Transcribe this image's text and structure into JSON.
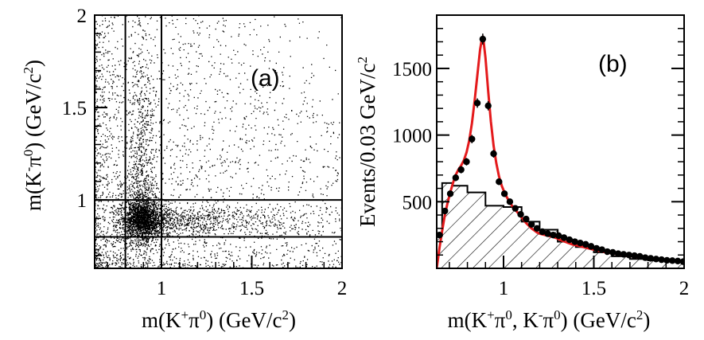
{
  "chart_data": [
    {
      "type": "scatter",
      "panel_label": "(a)",
      "xlabel": {
        "pre": "m(K",
        "sup1": "+",
        "mid": "π",
        "sup2": "0",
        "post": ") (GeV/c",
        "sup3": "2",
        "end": ")"
      },
      "ylabel": {
        "pre": "m(K",
        "sup1": "-",
        "mid": "π",
        "sup2": "0",
        "post": ") (GeV/c",
        "sup3": "2",
        "end": ")"
      },
      "xlim": [
        0.63,
        2.0
      ],
      "ylim": [
        0.63,
        2.0
      ],
      "xticks": [
        {
          "v": 1,
          "label": "1"
        },
        {
          "v": 1.5,
          "label": "1.5"
        },
        {
          "v": 2,
          "label": "2"
        }
      ],
      "yticks": [
        {
          "v": 1,
          "label": "1"
        },
        {
          "v": 1.5,
          "label": "1.5"
        },
        {
          "v": 2,
          "label": "2"
        }
      ],
      "cut_lines_x": [
        0.8,
        1.0
      ],
      "cut_lines_y": [
        0.8,
        1.0
      ],
      "grid": false,
      "point_density_clusters": [
        {
          "x": 0.89,
          "y": 0.89,
          "sx": 0.06,
          "sy": 0.06,
          "weight": 0.3
        },
        {
          "x": 0.89,
          "y": 1.05,
          "sx": 0.04,
          "sy": 0.45,
          "weight": 0.12
        },
        {
          "x": 1.1,
          "y": 0.89,
          "sx": 0.45,
          "sy": 0.04,
          "weight": 0.14
        },
        {
          "x": 1.3,
          "y": 1.3,
          "sx": 0.5,
          "sy": 0.5,
          "weight": 0.44
        }
      ]
    },
    {
      "type": "histogram",
      "panel_label": "(b)",
      "xlabel": {
        "pre": "m(K",
        "sup1": "+",
        "mid": "π",
        "sup2": "0",
        "mid2": ", K",
        "sup3": "-",
        "mid3": "π",
        "sup4": "0",
        "post": ") (GeV/c",
        "sup5": "2",
        "end": ")"
      },
      "ylabel": {
        "pre": "Events/0.03 GeV/c",
        "sup": "2"
      },
      "xlim": [
        0.63,
        2.0
      ],
      "ylim": [
        0,
        1900
      ],
      "xticks": [
        {
          "v": 1,
          "label": "1"
        },
        {
          "v": 1.5,
          "label": "1.5"
        },
        {
          "v": 2,
          "label": "2"
        }
      ],
      "yticks": [
        {
          "v": 500,
          "label": "500"
        },
        {
          "v": 1000,
          "label": "1000"
        },
        {
          "v": 1500,
          "label": "1500"
        }
      ],
      "data_points": {
        "x": [
          0.645,
          0.675,
          0.705,
          0.735,
          0.765,
          0.795,
          0.825,
          0.855,
          0.885,
          0.915,
          0.945,
          0.975,
          1.005,
          1.035,
          1.065,
          1.095,
          1.125,
          1.155,
          1.185,
          1.215,
          1.245,
          1.275,
          1.305,
          1.335,
          1.365,
          1.395,
          1.425,
          1.455,
          1.485,
          1.515,
          1.545,
          1.575,
          1.605,
          1.635,
          1.665,
          1.695,
          1.725,
          1.755,
          1.785,
          1.815,
          1.845,
          1.875,
          1.905,
          1.935,
          1.965,
          1.995
        ],
        "y": [
          250,
          430,
          560,
          680,
          740,
          800,
          970,
          1240,
          1720,
          1220,
          860,
          650,
          560,
          500,
          450,
          405,
          370,
          330,
          300,
          275,
          260,
          250,
          245,
          230,
          215,
          200,
          190,
          180,
          165,
          150,
          140,
          125,
          120,
          110,
          105,
          100,
          95,
          90,
          80,
          75,
          70,
          65,
          60,
          58,
          55,
          50
        ]
      },
      "fit_curve": {
        "color": "#e41a1c",
        "x": [
          0.63,
          0.645,
          0.66,
          0.675,
          0.69,
          0.705,
          0.72,
          0.735,
          0.75,
          0.765,
          0.78,
          0.795,
          0.81,
          0.825,
          0.84,
          0.855,
          0.87,
          0.88,
          0.885,
          0.89,
          0.9,
          0.915,
          0.93,
          0.945,
          0.96,
          0.975,
          0.99,
          1.005,
          1.02,
          1.035,
          1.05,
          1.065,
          1.08,
          1.095,
          1.11,
          1.125,
          1.14,
          1.155,
          1.17,
          1.185,
          1.2,
          1.215,
          1.23,
          1.245,
          1.26,
          1.275,
          1.29,
          1.305,
          1.32,
          1.35,
          1.38,
          1.41,
          1.44,
          1.47,
          1.5,
          1.53,
          1.56,
          1.59,
          1.62,
          1.65,
          1.68,
          1.71,
          1.74,
          1.77,
          1.8,
          1.83,
          1.86,
          1.89,
          1.92,
          1.95,
          1.98,
          2.0
        ],
        "y": [
          0,
          150,
          280,
          400,
          490,
          570,
          640,
          700,
          740,
          770,
          810,
          870,
          960,
          1090,
          1260,
          1450,
          1640,
          1720,
          1730,
          1700,
          1580,
          1330,
          1100,
          920,
          790,
          690,
          620,
          570,
          530,
          495,
          465,
          440,
          415,
          390,
          365,
          340,
          320,
          300,
          285,
          270,
          260,
          255,
          250,
          245,
          240,
          235,
          228,
          220,
          210,
          195,
          180,
          170,
          160,
          150,
          140,
          130,
          122,
          115,
          108,
          100,
          95,
          90,
          85,
          80,
          75,
          70,
          66,
          62,
          58,
          55,
          50,
          48
        ]
      },
      "background_histogram": {
        "pattern": "hatched",
        "bins": [
          {
            "x0": 0.6,
            "x1": 0.66,
            "h": 245
          },
          {
            "x0": 0.66,
            "x1": 0.72,
            "h": 640
          },
          {
            "x0": 0.72,
            "x1": 0.8,
            "h": 620
          },
          {
            "x0": 0.8,
            "x1": 0.9,
            "h": 570
          },
          {
            "x0": 0.9,
            "x1": 1.0,
            "h": 470
          },
          {
            "x0": 1.0,
            "x1": 1.1,
            "h": 460
          },
          {
            "x0": 1.1,
            "x1": 1.2,
            "h": 350
          },
          {
            "x0": 1.2,
            "x1": 1.3,
            "h": 290
          },
          {
            "x0": 1.3,
            "x1": 1.4,
            "h": 200
          },
          {
            "x0": 1.4,
            "x1": 1.5,
            "h": 160
          },
          {
            "x0": 1.5,
            "x1": 1.6,
            "h": 120
          },
          {
            "x0": 1.6,
            "x1": 1.7,
            "h": 90
          },
          {
            "x0": 1.7,
            "x1": 1.8,
            "h": 70
          },
          {
            "x0": 1.8,
            "x1": 1.9,
            "h": 60
          },
          {
            "x0": 1.9,
            "x1": 2.0,
            "h": 50
          }
        ]
      }
    }
  ]
}
